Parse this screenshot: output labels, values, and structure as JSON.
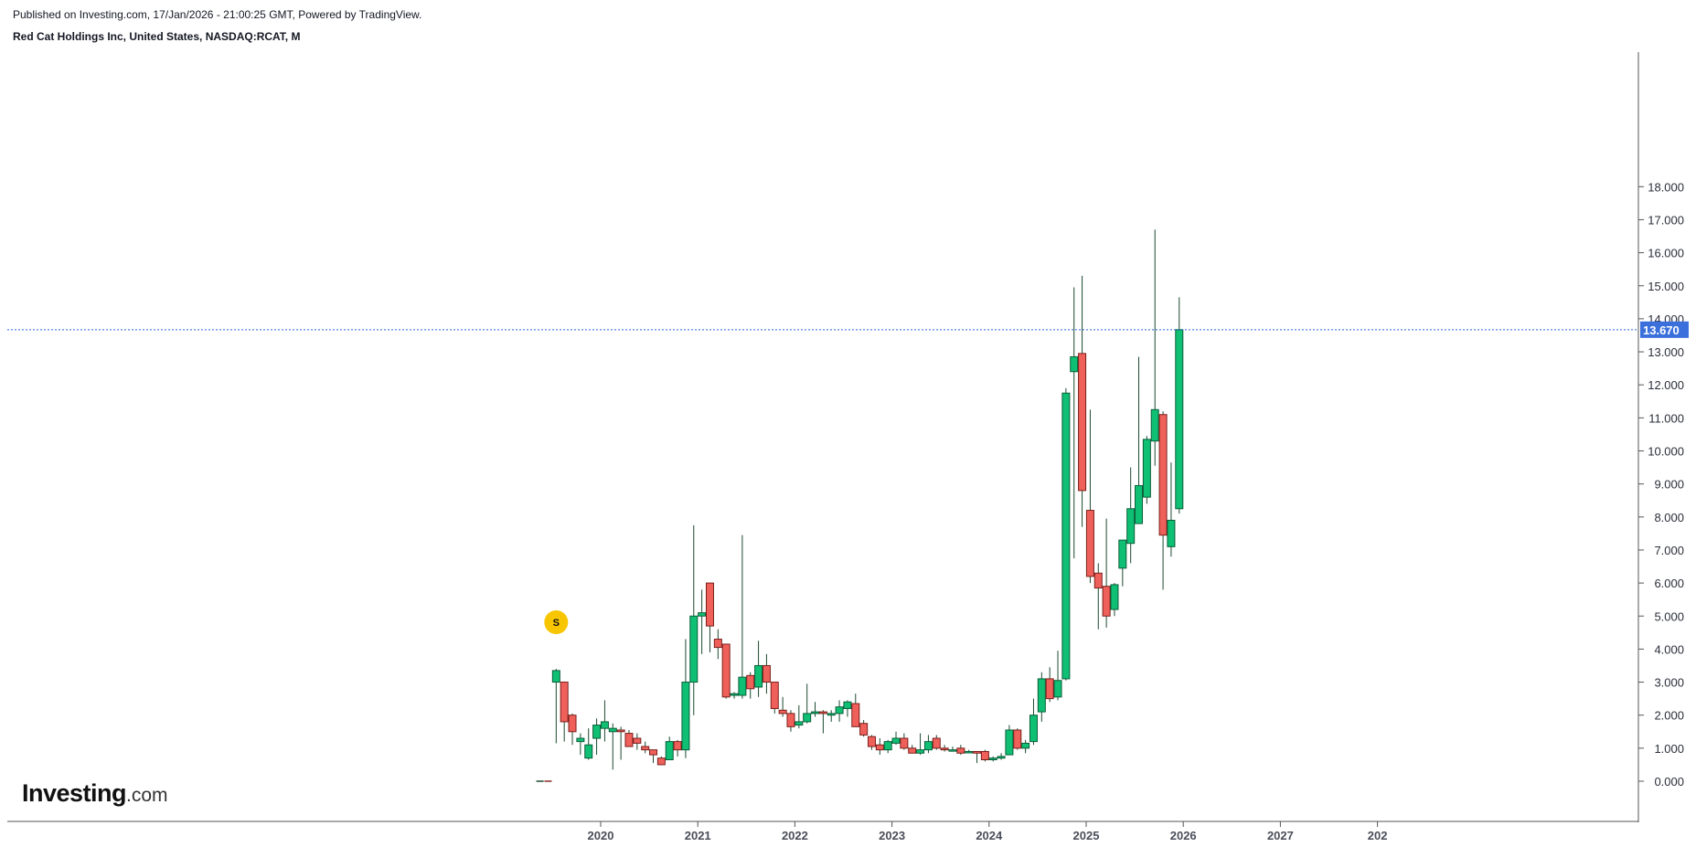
{
  "header": {
    "published": "Published on Investing.com, 17/Jan/2026 - 21:00:25 GMT, Powered by TradingView.",
    "title": "Red Cat Holdings Inc, United States, NASDAQ:RCAT, M"
  },
  "logo": {
    "brand": "Investing",
    "suffix": ".com"
  },
  "split_marker": {
    "label": "S",
    "color": "#f7c600",
    "date": "2019-07"
  },
  "last_price_label": "13.670",
  "colors": {
    "up": "#0fbf73",
    "down": "#f0605a",
    "wick": "#1c4a30",
    "price_line": "#2b66d9",
    "label_bg": "#3a6fdc"
  },
  "chart_data": {
    "type": "candlestick",
    "title": "Red Cat Holdings Inc, United States, NASDAQ:RCAT, M",
    "interval": "M",
    "xlabel": "",
    "ylabel": "",
    "ylim": [
      -1.0,
      19.3
    ],
    "y_ticks": [
      "0.000",
      "1.000",
      "2.000",
      "3.000",
      "4.000",
      "5.000",
      "6.000",
      "7.000",
      "8.000",
      "9.000",
      "10.000",
      "11.000",
      "12.000",
      "13.000",
      "14.000",
      "15.000",
      "16.000",
      "17.000",
      "18.000"
    ],
    "x_ticks": [
      "2020",
      "2021",
      "2022",
      "2023",
      "2024",
      "2025",
      "2026",
      "2027",
      "202"
    ],
    "last_price": 13.67,
    "grid": false,
    "pre_data_marks": [
      {
        "date": "2019-05",
        "value": 0.0
      },
      {
        "date": "2019-06",
        "value": 0.0
      }
    ],
    "candles": [
      {
        "date": "2019-07",
        "o": 3.0,
        "h": 3.4,
        "l": 1.15,
        "c": 3.35
      },
      {
        "date": "2019-08",
        "o": 3.0,
        "h": 3.0,
        "l": 1.2,
        "c": 1.8
      },
      {
        "date": "2019-09",
        "o": 2.0,
        "h": 2.05,
        "l": 1.1,
        "c": 1.5
      },
      {
        "date": "2019-10",
        "o": 1.2,
        "h": 1.45,
        "l": 0.8,
        "c": 1.3
      },
      {
        "date": "2019-11",
        "o": 0.7,
        "h": 1.6,
        "l": 0.65,
        "c": 1.1
      },
      {
        "date": "2019-12",
        "o": 1.3,
        "h": 1.9,
        "l": 0.8,
        "c": 1.7
      },
      {
        "date": "2020-01",
        "o": 1.6,
        "h": 2.45,
        "l": 1.2,
        "c": 1.8
      },
      {
        "date": "2020-02",
        "o": 1.5,
        "h": 1.75,
        "l": 0.35,
        "c": 1.6
      },
      {
        "date": "2020-03",
        "o": 1.55,
        "h": 1.65,
        "l": 0.65,
        "c": 1.5
      },
      {
        "date": "2020-04",
        "o": 1.45,
        "h": 1.55,
        "l": 1.05,
        "c": 1.05
      },
      {
        "date": "2020-05",
        "o": 1.3,
        "h": 1.45,
        "l": 0.95,
        "c": 1.15
      },
      {
        "date": "2020-06",
        "o": 1.05,
        "h": 1.2,
        "l": 0.85,
        "c": 0.95
      },
      {
        "date": "2020-07",
        "o": 0.95,
        "h": 0.95,
        "l": 0.55,
        "c": 0.8
      },
      {
        "date": "2020-08",
        "o": 0.7,
        "h": 0.75,
        "l": 0.5,
        "c": 0.5
      },
      {
        "date": "2020-09",
        "o": 0.65,
        "h": 1.35,
        "l": 0.65,
        "c": 1.2
      },
      {
        "date": "2020-10",
        "o": 1.2,
        "h": 1.25,
        "l": 0.75,
        "c": 0.95
      },
      {
        "date": "2020-11",
        "o": 0.95,
        "h": 4.3,
        "l": 0.7,
        "c": 3.0
      },
      {
        "date": "2020-12",
        "o": 3.0,
        "h": 7.75,
        "l": 2.0,
        "c": 5.0
      },
      {
        "date": "2021-01",
        "o": 5.0,
        "h": 5.8,
        "l": 3.85,
        "c": 5.1
      },
      {
        "date": "2021-02",
        "o": 6.0,
        "h": 6.0,
        "l": 3.9,
        "c": 4.7
      },
      {
        "date": "2021-03",
        "o": 4.3,
        "h": 4.6,
        "l": 3.7,
        "c": 4.05
      },
      {
        "date": "2021-04",
        "o": 4.15,
        "h": 4.15,
        "l": 2.5,
        "c": 2.55
      },
      {
        "date": "2021-05",
        "o": 2.6,
        "h": 2.7,
        "l": 2.5,
        "c": 2.65
      },
      {
        "date": "2021-06",
        "o": 2.6,
        "h": 7.45,
        "l": 2.5,
        "c": 3.15
      },
      {
        "date": "2021-07",
        "o": 3.2,
        "h": 3.3,
        "l": 2.5,
        "c": 2.8
      },
      {
        "date": "2021-08",
        "o": 2.85,
        "h": 4.25,
        "l": 2.55,
        "c": 3.5
      },
      {
        "date": "2021-09",
        "o": 3.5,
        "h": 3.85,
        "l": 2.65,
        "c": 3.0
      },
      {
        "date": "2021-10",
        "o": 3.0,
        "h": 3.0,
        "l": 2.05,
        "c": 2.2
      },
      {
        "date": "2021-11",
        "o": 2.15,
        "h": 2.55,
        "l": 1.95,
        "c": 2.05
      },
      {
        "date": "2021-12",
        "o": 2.05,
        "h": 2.15,
        "l": 1.5,
        "c": 1.65
      },
      {
        "date": "2022-01",
        "o": 1.7,
        "h": 2.3,
        "l": 1.6,
        "c": 1.8
      },
      {
        "date": "2022-02",
        "o": 1.8,
        "h": 2.95,
        "l": 1.75,
        "c": 2.05
      },
      {
        "date": "2022-03",
        "o": 2.05,
        "h": 2.4,
        "l": 1.95,
        "c": 2.1
      },
      {
        "date": "2022-04",
        "o": 2.1,
        "h": 2.15,
        "l": 1.45,
        "c": 2.05
      },
      {
        "date": "2022-05",
        "o": 2.0,
        "h": 2.15,
        "l": 1.8,
        "c": 2.05
      },
      {
        "date": "2022-06",
        "o": 2.05,
        "h": 2.45,
        "l": 1.8,
        "c": 2.25
      },
      {
        "date": "2022-07",
        "o": 2.2,
        "h": 2.45,
        "l": 1.95,
        "c": 2.4
      },
      {
        "date": "2022-08",
        "o": 2.35,
        "h": 2.65,
        "l": 1.65,
        "c": 1.65
      },
      {
        "date": "2022-09",
        "o": 1.75,
        "h": 1.85,
        "l": 1.35,
        "c": 1.4
      },
      {
        "date": "2022-10",
        "o": 1.35,
        "h": 1.4,
        "l": 0.95,
        "c": 1.05
      },
      {
        "date": "2022-11",
        "o": 1.1,
        "h": 1.3,
        "l": 0.8,
        "c": 0.95
      },
      {
        "date": "2022-12",
        "o": 0.95,
        "h": 1.25,
        "l": 0.85,
        "c": 1.2
      },
      {
        "date": "2023-01",
        "o": 1.15,
        "h": 1.5,
        "l": 1.1,
        "c": 1.3
      },
      {
        "date": "2023-02",
        "o": 1.3,
        "h": 1.45,
        "l": 0.95,
        "c": 1.0
      },
      {
        "date": "2023-03",
        "o": 1.0,
        "h": 1.1,
        "l": 0.85,
        "c": 0.85
      },
      {
        "date": "2023-04",
        "o": 0.85,
        "h": 1.45,
        "l": 0.8,
        "c": 0.95
      },
      {
        "date": "2023-05",
        "o": 0.95,
        "h": 1.4,
        "l": 0.85,
        "c": 1.2
      },
      {
        "date": "2023-06",
        "o": 1.3,
        "h": 1.4,
        "l": 0.95,
        "c": 1.0
      },
      {
        "date": "2023-07",
        "o": 1.0,
        "h": 1.1,
        "l": 0.9,
        "c": 0.95
      },
      {
        "date": "2023-08",
        "o": 0.95,
        "h": 1.05,
        "l": 0.9,
        "c": 0.95
      },
      {
        "date": "2023-09",
        "o": 1.0,
        "h": 1.1,
        "l": 0.8,
        "c": 0.85
      },
      {
        "date": "2023-10",
        "o": 0.9,
        "h": 0.95,
        "l": 0.85,
        "c": 0.9
      },
      {
        "date": "2023-11",
        "o": 0.9,
        "h": 0.9,
        "l": 0.55,
        "c": 0.85
      },
      {
        "date": "2023-12",
        "o": 0.9,
        "h": 0.95,
        "l": 0.6,
        "c": 0.65
      },
      {
        "date": "2024-01",
        "o": 0.65,
        "h": 0.75,
        "l": 0.6,
        "c": 0.7
      },
      {
        "date": "2024-02",
        "o": 0.7,
        "h": 0.85,
        "l": 0.65,
        "c": 0.75
      },
      {
        "date": "2024-03",
        "o": 0.8,
        "h": 1.7,
        "l": 0.8,
        "c": 1.55
      },
      {
        "date": "2024-04",
        "o": 1.55,
        "h": 1.6,
        "l": 0.95,
        "c": 1.0
      },
      {
        "date": "2024-05",
        "o": 1.0,
        "h": 1.25,
        "l": 0.85,
        "c": 1.15
      },
      {
        "date": "2024-06",
        "o": 1.2,
        "h": 2.5,
        "l": 1.1,
        "c": 2.0
      },
      {
        "date": "2024-07",
        "o": 2.1,
        "h": 3.3,
        "l": 1.8,
        "c": 3.1
      },
      {
        "date": "2024-08",
        "o": 3.1,
        "h": 3.45,
        "l": 2.4,
        "c": 2.5
      },
      {
        "date": "2024-09",
        "o": 2.55,
        "h": 3.95,
        "l": 2.45,
        "c": 3.05
      },
      {
        "date": "2024-10",
        "o": 3.1,
        "h": 11.9,
        "l": 3.05,
        "c": 11.75
      },
      {
        "date": "2024-11",
        "o": 12.4,
        "h": 14.95,
        "l": 6.75,
        "c": 12.85
      },
      {
        "date": "2024-12",
        "o": 12.95,
        "h": 15.3,
        "l": 7.7,
        "c": 8.8
      },
      {
        "date": "2025-01",
        "o": 8.2,
        "h": 11.25,
        "l": 6.0,
        "c": 6.2
      },
      {
        "date": "2025-02",
        "o": 6.3,
        "h": 6.6,
        "l": 4.6,
        "c": 5.85
      },
      {
        "date": "2025-03",
        "o": 5.9,
        "h": 7.95,
        "l": 4.65,
        "c": 5.0
      },
      {
        "date": "2025-04",
        "o": 5.2,
        "h": 6.0,
        "l": 5.0,
        "c": 5.95
      },
      {
        "date": "2025-05",
        "o": 6.45,
        "h": 7.3,
        "l": 5.9,
        "c": 7.3
      },
      {
        "date": "2025-06",
        "o": 7.2,
        "h": 9.5,
        "l": 6.6,
        "c": 8.25
      },
      {
        "date": "2025-07",
        "o": 7.8,
        "h": 12.85,
        "l": 7.8,
        "c": 8.95
      },
      {
        "date": "2025-08",
        "o": 8.6,
        "h": 10.45,
        "l": 8.4,
        "c": 10.35
      },
      {
        "date": "2025-09",
        "o": 10.3,
        "h": 16.7,
        "l": 9.55,
        "c": 11.25
      },
      {
        "date": "2025-10",
        "o": 11.1,
        "h": 11.2,
        "l": 5.8,
        "c": 7.45
      },
      {
        "date": "2025-11",
        "o": 7.1,
        "h": 9.65,
        "l": 6.8,
        "c": 7.9
      },
      {
        "date": "2025-12",
        "o": 8.25,
        "h": 14.65,
        "l": 8.1,
        "c": 13.67
      }
    ]
  }
}
